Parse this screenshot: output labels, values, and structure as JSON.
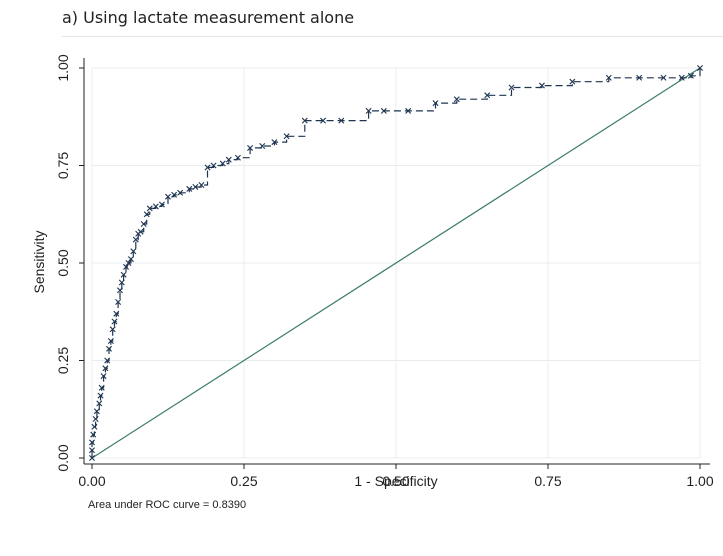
{
  "figure": {
    "title": "a)   Using lactate measurement alone"
  },
  "chart_data": {
    "type": "line",
    "xlabel": "1 - Specificity",
    "ylabel": "Sensitivity",
    "xlim": [
      0,
      1
    ],
    "ylim": [
      0,
      1
    ],
    "x_ticks": [
      "0.00",
      "0.25",
      "0.50",
      "0.75",
      "1.00"
    ],
    "y_ticks": [
      "0.00",
      "0.25",
      "0.50",
      "0.75",
      "1.00"
    ],
    "grid": true,
    "note": "Area under ROC curve = 0.8390",
    "colors": {
      "roc_curve": "#1f3550",
      "reference_line": "#3a7a6a",
      "grid": "#e8ecef"
    },
    "series": [
      {
        "style": "dashed-step-with-markers",
        "points": [
          [
            0.0,
            0.0
          ],
          [
            0.0,
            0.02
          ],
          [
            0.0,
            0.04
          ],
          [
            0.002,
            0.06
          ],
          [
            0.004,
            0.08
          ],
          [
            0.006,
            0.1
          ],
          [
            0.008,
            0.12
          ],
          [
            0.012,
            0.14
          ],
          [
            0.014,
            0.16
          ],
          [
            0.016,
            0.18
          ],
          [
            0.019,
            0.21
          ],
          [
            0.022,
            0.23
          ],
          [
            0.025,
            0.25
          ],
          [
            0.028,
            0.28
          ],
          [
            0.031,
            0.3
          ],
          [
            0.034,
            0.33
          ],
          [
            0.037,
            0.35
          ],
          [
            0.04,
            0.37
          ],
          [
            0.043,
            0.4
          ],
          [
            0.046,
            0.43
          ],
          [
            0.049,
            0.45
          ],
          [
            0.052,
            0.47
          ],
          [
            0.056,
            0.49
          ],
          [
            0.06,
            0.5
          ],
          [
            0.064,
            0.51
          ],
          [
            0.068,
            0.53
          ],
          [
            0.072,
            0.56
          ],
          [
            0.076,
            0.575
          ],
          [
            0.08,
            0.58
          ],
          [
            0.085,
            0.6
          ],
          [
            0.09,
            0.625
          ],
          [
            0.095,
            0.64
          ],
          [
            0.105,
            0.645
          ],
          [
            0.115,
            0.65
          ],
          [
            0.125,
            0.67
          ],
          [
            0.135,
            0.675
          ],
          [
            0.145,
            0.68
          ],
          [
            0.16,
            0.69
          ],
          [
            0.17,
            0.695
          ],
          [
            0.18,
            0.7
          ],
          [
            0.19,
            0.745
          ],
          [
            0.2,
            0.75
          ],
          [
            0.215,
            0.755
          ],
          [
            0.225,
            0.765
          ],
          [
            0.24,
            0.77
          ],
          [
            0.26,
            0.795
          ],
          [
            0.28,
            0.8
          ],
          [
            0.3,
            0.81
          ],
          [
            0.32,
            0.825
          ],
          [
            0.35,
            0.865
          ],
          [
            0.38,
            0.865
          ],
          [
            0.41,
            0.865
          ],
          [
            0.455,
            0.89
          ],
          [
            0.48,
            0.89
          ],
          [
            0.52,
            0.89
          ],
          [
            0.565,
            0.91
          ],
          [
            0.6,
            0.92
          ],
          [
            0.65,
            0.93
          ],
          [
            0.69,
            0.95
          ],
          [
            0.74,
            0.955
          ],
          [
            0.79,
            0.965
          ],
          [
            0.85,
            0.975
          ],
          [
            0.9,
            0.975
          ],
          [
            0.94,
            0.975
          ],
          [
            0.97,
            0.975
          ],
          [
            0.985,
            0.98
          ],
          [
            1.0,
            1.0
          ]
        ]
      },
      {
        "style": "diagonal-reference",
        "points": [
          [
            0.0,
            0.0
          ],
          [
            1.0,
            1.0
          ]
        ]
      }
    ]
  }
}
